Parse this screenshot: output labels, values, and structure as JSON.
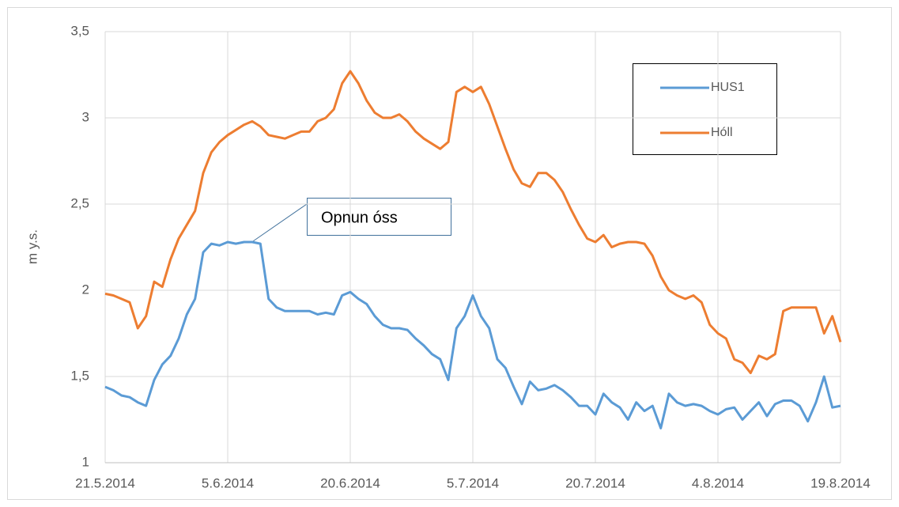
{
  "chart_data": {
    "type": "line",
    "ylabel": "m y.s.",
    "annotation": "Opnun óss",
    "x": [
      "21.5.2014",
      "22.5.2014",
      "23.5.2014",
      "24.5.2014",
      "25.5.2014",
      "26.5.2014",
      "27.5.2014",
      "28.5.2014",
      "29.5.2014",
      "30.5.2014",
      "31.5.2014",
      "1.6.2014",
      "2.6.2014",
      "3.6.2014",
      "4.6.2014",
      "5.6.2014",
      "6.6.2014",
      "7.6.2014",
      "8.6.2014",
      "9.6.2014",
      "10.6.2014",
      "11.6.2014",
      "12.6.2014",
      "13.6.2014",
      "14.6.2014",
      "15.6.2014",
      "16.6.2014",
      "17.6.2014",
      "18.6.2014",
      "19.6.2014",
      "20.6.2014",
      "21.6.2014",
      "22.6.2014",
      "23.6.2014",
      "24.6.2014",
      "25.6.2014",
      "26.6.2014",
      "27.6.2014",
      "28.6.2014",
      "29.6.2014",
      "30.6.2014",
      "1.7.2014",
      "2.7.2014",
      "3.7.2014",
      "4.7.2014",
      "5.7.2014",
      "6.7.2014",
      "7.7.2014",
      "8.7.2014",
      "9.7.2014",
      "10.7.2014",
      "11.7.2014",
      "12.7.2014",
      "13.7.2014",
      "14.7.2014",
      "15.7.2014",
      "16.7.2014",
      "17.7.2014",
      "18.7.2014",
      "19.7.2014",
      "20.7.2014",
      "21.7.2014",
      "22.7.2014",
      "23.7.2014",
      "24.7.2014",
      "25.7.2014",
      "26.7.2014",
      "27.7.2014",
      "28.7.2014",
      "29.7.2014",
      "30.7.2014",
      "31.7.2014",
      "1.8.2014",
      "2.8.2014",
      "3.8.2014",
      "4.8.2014",
      "5.8.2014",
      "6.8.2014",
      "7.8.2014",
      "8.8.2014",
      "9.8.2014",
      "10.8.2014",
      "11.8.2014",
      "12.8.2014",
      "13.8.2014",
      "14.8.2014",
      "15.8.2014",
      "16.8.2014",
      "17.8.2014",
      "18.8.2014",
      "19.8.2014"
    ],
    "series": [
      {
        "name": "HUS1",
        "color": "#5b9bd5",
        "values": [
          1.44,
          1.42,
          1.39,
          1.38,
          1.35,
          1.33,
          1.48,
          1.57,
          1.62,
          1.72,
          1.86,
          1.95,
          2.22,
          2.27,
          2.26,
          2.28,
          2.27,
          2.28,
          2.28,
          2.27,
          1.95,
          1.9,
          1.88,
          1.88,
          1.88,
          1.88,
          1.86,
          1.87,
          1.86,
          1.97,
          1.99,
          1.95,
          1.92,
          1.85,
          1.8,
          1.78,
          1.78,
          1.77,
          1.72,
          1.68,
          1.63,
          1.6,
          1.48,
          1.78,
          1.85,
          1.97,
          1.85,
          1.78,
          1.6,
          1.55,
          1.44,
          1.34,
          1.47,
          1.42,
          1.43,
          1.45,
          1.42,
          1.38,
          1.33,
          1.33,
          1.28,
          1.4,
          1.35,
          1.32,
          1.25,
          1.35,
          1.3,
          1.33,
          1.2,
          1.4,
          1.35,
          1.33,
          1.34,
          1.33,
          1.3,
          1.28,
          1.31,
          1.32,
          1.25,
          1.3,
          1.35,
          1.27,
          1.34,
          1.36,
          1.36,
          1.33,
          1.24,
          1.35,
          1.5,
          1.32,
          1.33
        ]
      },
      {
        "name": "Hóll",
        "color": "#ed7d31",
        "values": [
          1.98,
          1.97,
          1.95,
          1.93,
          1.78,
          1.85,
          2.05,
          2.02,
          2.18,
          2.3,
          2.38,
          2.46,
          2.68,
          2.8,
          2.86,
          2.9,
          2.93,
          2.96,
          2.98,
          2.95,
          2.9,
          2.89,
          2.88,
          2.9,
          2.92,
          2.92,
          2.98,
          3.0,
          3.05,
          3.2,
          3.27,
          3.2,
          3.1,
          3.03,
          3.0,
          3.0,
          3.02,
          2.98,
          2.92,
          2.88,
          2.85,
          2.82,
          2.86,
          3.15,
          3.18,
          3.15,
          3.18,
          3.08,
          2.95,
          2.82,
          2.7,
          2.62,
          2.6,
          2.68,
          2.68,
          2.64,
          2.57,
          2.47,
          2.38,
          2.3,
          2.28,
          2.32,
          2.25,
          2.27,
          2.28,
          2.28,
          2.27,
          2.2,
          2.08,
          2.0,
          1.97,
          1.95,
          1.97,
          1.93,
          1.8,
          1.75,
          1.72,
          1.6,
          1.58,
          1.52,
          1.62,
          1.6,
          1.63,
          1.88,
          1.9,
          1.9,
          1.9,
          1.9,
          1.75,
          1.85,
          1.7
        ]
      }
    ],
    "xlim": [
      "21.5.2014",
      "19.8.2014"
    ],
    "xticks": [
      "21.5.2014",
      "5.6.2014",
      "20.6.2014",
      "5.7.2014",
      "20.7.2014",
      "4.8.2014",
      "19.8.2014"
    ],
    "ylim": [
      1,
      3.5
    ],
    "yticks": [
      1,
      {
        "value": 1.5,
        "label": "1,5"
      },
      2,
      {
        "value": 2.5,
        "label": "2,5"
      },
      3,
      {
        "value": 3.5,
        "label": "3,5"
      }
    ],
    "grid": true
  }
}
